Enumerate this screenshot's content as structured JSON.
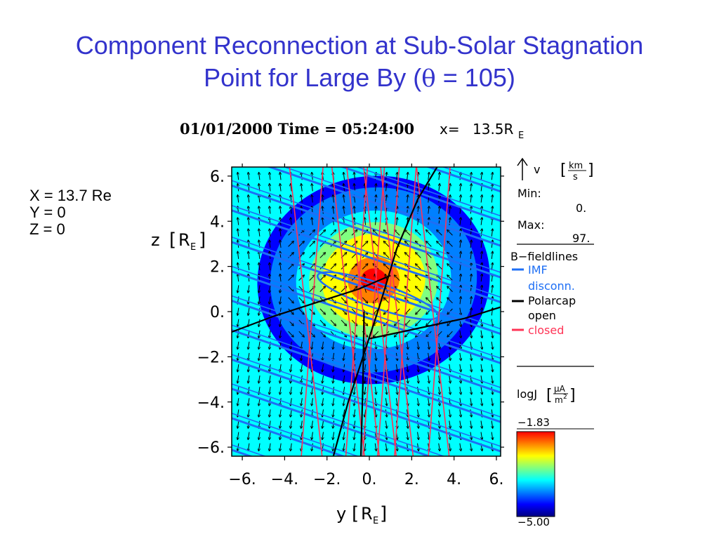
{
  "slide": {
    "title_line1": "Component Reconnection at Sub-Solar Stagnation",
    "title_line2_prefix": "Point for Large By (",
    "title_theta": "θ",
    "title_line2_suffix": " = 105)"
  },
  "position_info": {
    "x": "X = 13.7 Re",
    "y": "Y = 0",
    "z": "Z = 0"
  },
  "chart_data": {
    "type": "heatmap",
    "title": "01/01/2000 Time = 05:24:00",
    "title_x_label": "x=",
    "title_x_value": "13.5R",
    "title_x_sub": "E",
    "xlabel": "y",
    "ylabel": "z",
    "axis_unit": "R",
    "axis_unit_sub": "E",
    "xlim": [
      -6.5,
      6.2
    ],
    "ylim": [
      -6.4,
      6.4
    ],
    "xticks": [
      -6,
      -4,
      -2,
      0,
      2,
      4,
      6
    ],
    "yticks": [
      6,
      4,
      2,
      0,
      -2,
      -4,
      -6
    ],
    "xtick_labels": [
      "−6.",
      "−4.",
      "−2.",
      "0.",
      "2.",
      "4.",
      "6."
    ],
    "ytick_labels": [
      "6.",
      "4.",
      "2.",
      "0.",
      "−2.",
      "−4.",
      "−6."
    ],
    "velocity_legend": {
      "label": "v",
      "unit_num": "km",
      "unit_den": "s",
      "min_label": "Min:",
      "min_value": "0.",
      "max_label": "Max:",
      "max_value": "97."
    },
    "fieldline_legend": {
      "title": "B−fieldlines",
      "entries": [
        {
          "name": "IMF",
          "sub": "disconn.",
          "color": "#1e6ff5"
        },
        {
          "name": "Polarcap",
          "sub": "open",
          "color": "#000000"
        },
        {
          "name": "closed",
          "sub": "",
          "color": "#ff3355"
        }
      ]
    },
    "colorbar": {
      "label": "logJ",
      "unit_num": "μA",
      "unit_den": "m",
      "unit_den_sup": "2",
      "max": "−1.83",
      "min": "−5.00",
      "vmin": -5.0,
      "vmax": -1.83,
      "colors": [
        "#00007f",
        "#0000ff",
        "#0080ff",
        "#00ffff",
        "#80ff80",
        "#ffff00",
        "#ff8000",
        "#ff0000"
      ]
    },
    "field_peak": {
      "y0": 0.2,
      "z0": 1.4,
      "ry": 5.5,
      "rz": 4.6,
      "angle_deg": -8,
      "level_min": -4.6,
      "level_max": -1.9
    },
    "blue_fieldlines": {
      "slope": -0.32,
      "intercepts": [
        7.3,
        6.0,
        4.9,
        3.5,
        2.4,
        1.0,
        -0.3,
        -1.6,
        -2.9,
        -4.2,
        -5.5,
        -6.8,
        -8.2
      ]
    },
    "blue_closed_loop": {
      "y_center": 0.4,
      "z_center": 0.7,
      "ry": 3.0,
      "rz": 0.55,
      "slope": -0.32
    },
    "red_fieldlines": {
      "y_positions": [
        -3.0,
        -2.7,
        -1.0,
        -0.6,
        -0.3,
        0.2,
        0.5,
        0.9,
        1.3,
        1.7,
        3.0,
        3.3
      ]
    },
    "black_fieldlines": [
      {
        "points": [
          [
            -1.7,
            -6.4
          ],
          [
            -1.0,
            -4.0
          ],
          [
            -0.3,
            -2.0
          ],
          [
            0.5,
            0.3
          ],
          [
            1.3,
            2.8
          ],
          [
            2.3,
            5.0
          ],
          [
            3.2,
            6.4
          ]
        ]
      },
      {
        "points": [
          [
            -6.5,
            -0.9
          ],
          [
            -4.5,
            -0.2
          ],
          [
            -2.5,
            0.4
          ],
          [
            -0.5,
            1.0
          ],
          [
            1.0,
            1.6
          ]
        ]
      },
      {
        "points": [
          [
            0.0,
            -1.2
          ],
          [
            1.5,
            -0.9
          ],
          [
            3.0,
            -0.6
          ],
          [
            4.5,
            -0.3
          ],
          [
            6.2,
            0.2
          ]
        ]
      },
      {
        "points": [
          [
            -0.4,
            -6.4
          ],
          [
            -0.3,
            -3.0
          ],
          [
            -0.25,
            0.0
          ]
        ]
      }
    ]
  }
}
